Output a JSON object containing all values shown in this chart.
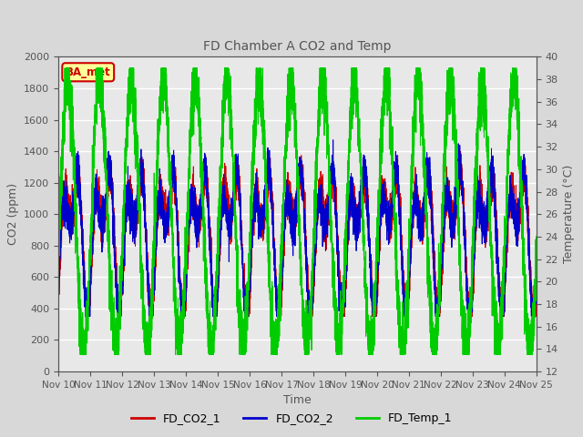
{
  "title": "FD Chamber A CO2 and Temp",
  "xlabel": "Time",
  "ylabel_left": "CO2 (ppm)",
  "ylabel_right": "Temperature (°C)",
  "co2_ylim": [
    0,
    2000
  ],
  "temp_ylim": [
    12,
    40
  ],
  "x_tick_labels": [
    "Nov 10",
    "Nov 11",
    "Nov 12",
    "Nov 13",
    "Nov 14",
    "Nov 15",
    "Nov 16",
    "Nov 17",
    "Nov 18",
    "Nov 19",
    "Nov 20",
    "Nov 21",
    "Nov 22",
    "Nov 23",
    "Nov 24",
    "Nov 25"
  ],
  "color_co2_1": "#cc0000",
  "color_co2_2": "#0000cc",
  "color_temp": "#00cc00",
  "legend_labels": [
    "FD_CO2_1",
    "FD_CO2_2",
    "FD_Temp_1"
  ],
  "annotation_text": "BA_met",
  "annotation_color": "#cc0000",
  "annotation_bg": "#ffff99",
  "bg_color": "#d8d8d8",
  "plot_bg_color": "#e8e8e8",
  "n_points": 7200,
  "duration_days": 15,
  "seed": 42,
  "title_color": "#555555",
  "tick_color": "#555555",
  "grid_color": "#ffffff",
  "figsize": [
    6.4,
    4.8
  ],
  "dpi": 100
}
